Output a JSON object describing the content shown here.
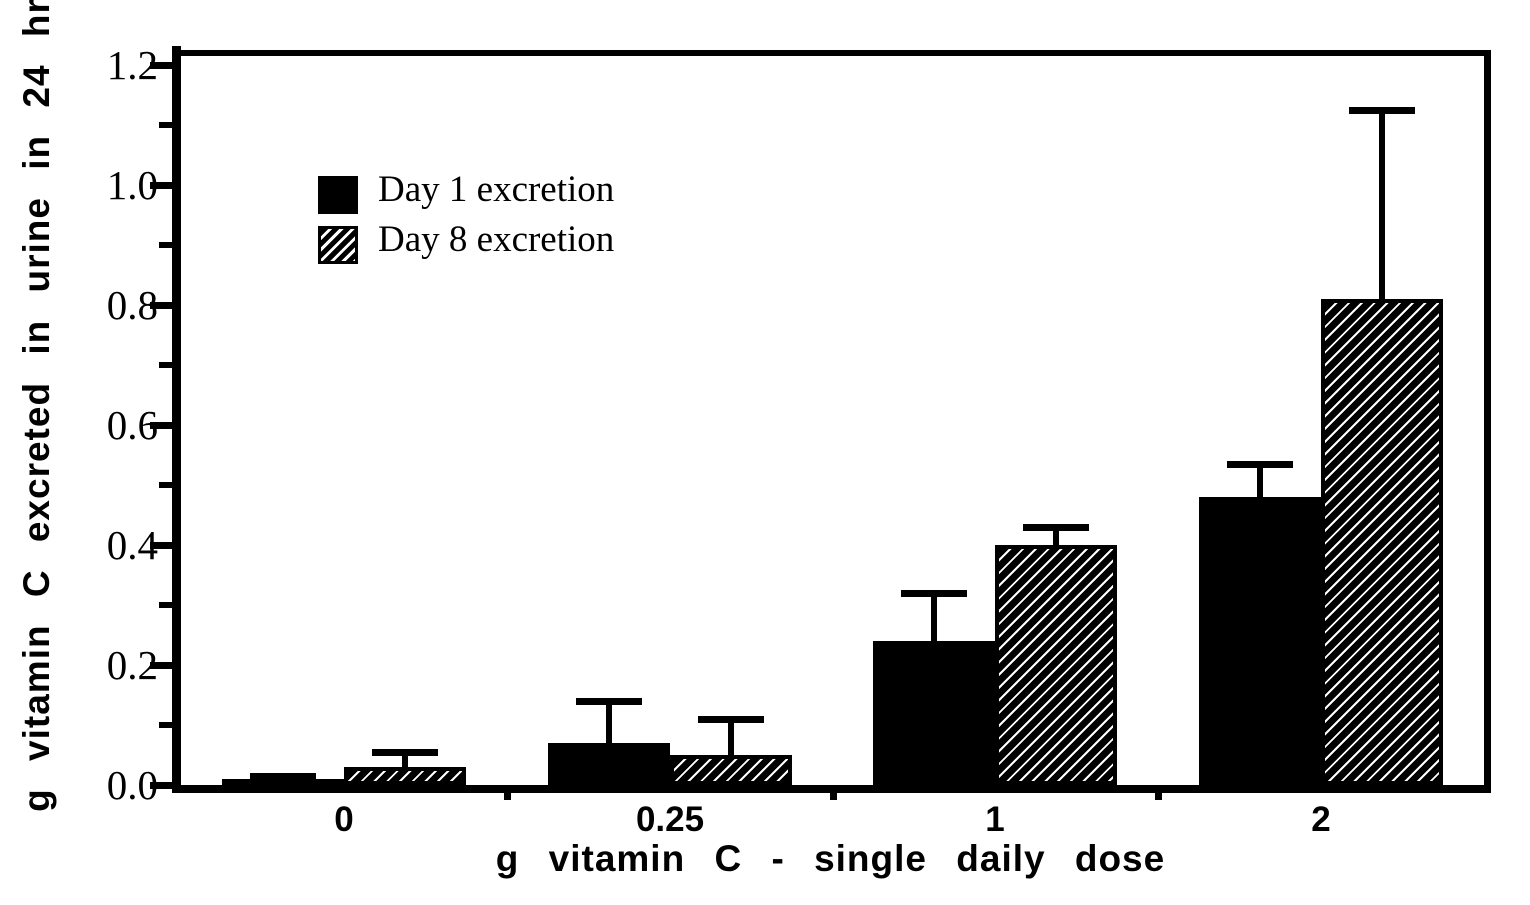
{
  "chart_data": {
    "type": "bar",
    "title": "",
    "xlabel": "g vitamin C - single daily dose",
    "ylabel": "g vitamin C excreted in urine in 24 hr",
    "categories": [
      "0",
      "0.25",
      "1",
      "2"
    ],
    "series": [
      {
        "name": "Day 1 excretion",
        "fill": "solid-black",
        "values": [
          0.01,
          0.07,
          0.24,
          0.48
        ],
        "error_up": [
          0.01,
          0.075,
          0.085,
          0.06
        ]
      },
      {
        "name": "Day 8 excretion",
        "fill": "diagonal-hatch",
        "values": [
          0.03,
          0.05,
          0.4,
          0.81
        ],
        "error_up": [
          0.03,
          0.065,
          0.035,
          0.32
        ]
      }
    ],
    "ylim": [
      0,
      1.2
    ],
    "yticks": [
      "0.0",
      "0.2",
      "0.4",
      "0.6",
      "0.8",
      "1.0",
      "1.2"
    ],
    "yticks_minor": [
      0.1,
      0.3,
      0.5,
      0.7,
      0.9,
      1.1
    ],
    "grid": false,
    "legend_position": "upper-left-inside",
    "error_bars": "upper-only",
    "colors": {
      "ink": "#000000",
      "background": "#ffffff"
    }
  }
}
